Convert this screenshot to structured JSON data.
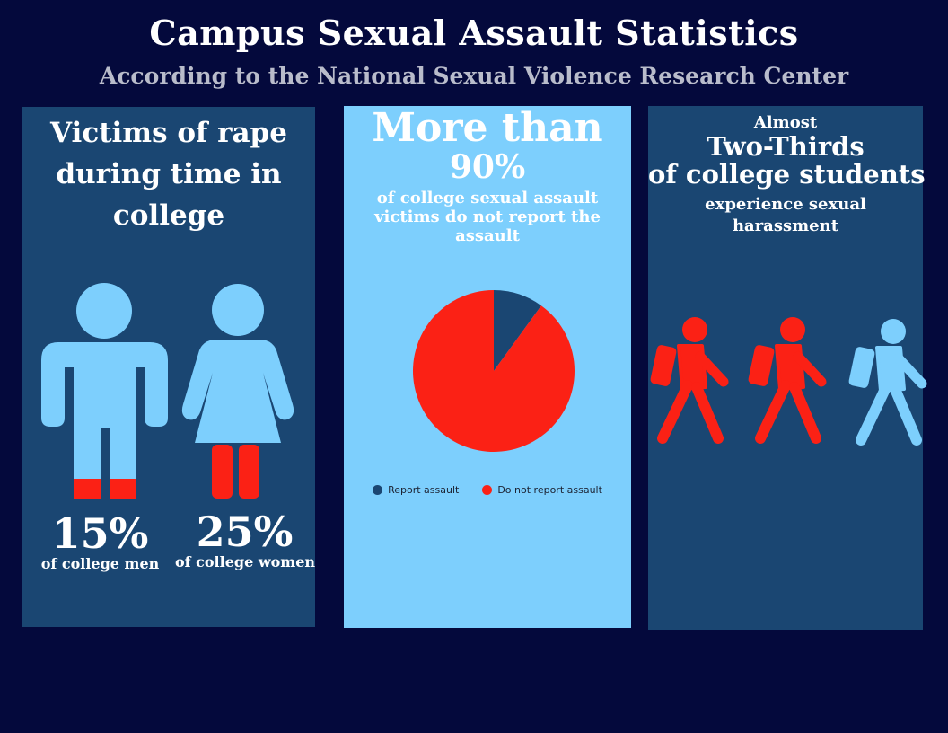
{
  "header": {
    "title": "Campus Sexual Assault Statistics",
    "subtitle": "According to the National Sexual Violence Research Center"
  },
  "left_panel": {
    "heading": "Victims of rape during time in college",
    "men": {
      "value": "15%",
      "caption": "of college men",
      "fraction": 0.15
    },
    "women": {
      "value": "25%",
      "caption": "of college women",
      "fraction": 0.25
    }
  },
  "middle_panel": {
    "lead": "More than",
    "percent": "90%",
    "body": "of college sexual assault victims do not report the assault"
  },
  "right_panel": {
    "lead": "Almost",
    "highlight": "Two-Thirds",
    "line": "of college students",
    "body": "experience sexual harassment",
    "walkers_highlighted": 2,
    "walkers_total": 3
  },
  "colors": {
    "background": "#04093c",
    "panel_dark": "#1a4672",
    "panel_light": "#7dcffd",
    "figure": "#7dcffd",
    "accent_red": "#fb2115",
    "report_blue": "#1a4672"
  },
  "chart_data": {
    "type": "pie",
    "title": "",
    "labels": [
      "Report assault",
      "Do not report assault"
    ],
    "values": [
      10,
      90
    ],
    "colors": [
      "#1a4672",
      "#fb2115"
    ],
    "legend": "bottom"
  }
}
